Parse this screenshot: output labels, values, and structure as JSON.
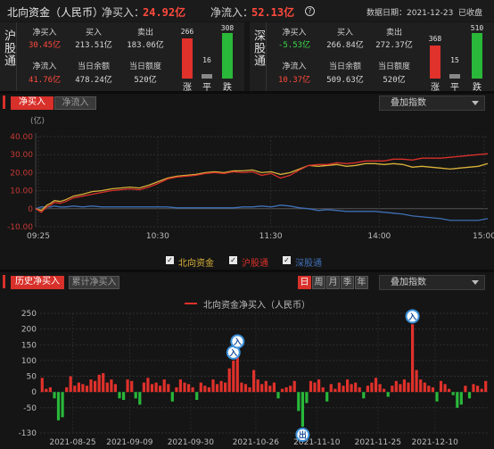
{
  "header": {
    "title": "北向资金（人民币）",
    "net_buy_label": "净买入：",
    "net_buy_value": "24.92亿",
    "net_inflow_label": "净流入：",
    "net_inflow_value": "52.13亿",
    "help_icon": "?",
    "date_label": "数据日期：2021-12-23",
    "status": "已收盘"
  },
  "shanghai": {
    "tag": "沪股通",
    "net_buy_label": "净买入",
    "net_buy_value": "30.45亿",
    "buy_label": "买入",
    "buy_value": "213.51亿",
    "sell_label": "卖出",
    "sell_value": "183.06亿",
    "net_inflow_label": "净流入",
    "net_inflow_value": "41.76亿",
    "balance_label": "当日余额",
    "balance_value": "478.24亿",
    "quota_label": "当日额度",
    "quota_value": "520亿",
    "up_count": "266",
    "flat_count": "16",
    "down_count": "308",
    "up_label": "涨",
    "flat_label": "平",
    "down_label": "跌"
  },
  "shenzhen": {
    "tag": "深股通",
    "net_buy_label": "净买入",
    "net_buy_value": "-5.53亿",
    "buy_label": "买入",
    "buy_value": "266.84亿",
    "sell_label": "卖出",
    "sell_value": "272.37亿",
    "net_inflow_label": "净流入",
    "net_inflow_value": "10.37亿",
    "balance_label": "当日余额",
    "balance_value": "509.63亿",
    "quota_label": "当日额度",
    "quota_value": "520亿",
    "up_count": "368",
    "flat_count": "15",
    "down_count": "510",
    "up_label": "涨",
    "flat_label": "平",
    "down_label": "跌"
  },
  "intraday_section": {
    "tab_net_buy": "净买入",
    "tab_net_inflow": "净流入",
    "overlay_label": "叠加指数",
    "unit_label": "(亿)"
  },
  "history_section": {
    "tab_history": "历史净买入",
    "tab_cumulative": "累计净买入",
    "periods": [
      "日",
      "周",
      "月",
      "季",
      "年"
    ],
    "overlay_label": "叠加指数"
  },
  "colors": {
    "accent": "#d8302a",
    "up": "#e0312b",
    "down": "#29b83a",
    "line_north": "#d9b23a",
    "line_sh": "#d8302a",
    "line_sz": "#3f6fb5"
  },
  "chart_data": [
    {
      "type": "line",
      "unit": "亿",
      "x_ticks": [
        "09:25",
        "10:30",
        "11:30",
        "14:00",
        "15:00"
      ],
      "y_ticks": [
        40.0,
        30.0,
        20.0,
        10.0,
        0,
        -10.0
      ],
      "ylim": [
        -10,
        40
      ],
      "x_points": [
        0,
        3,
        6,
        8,
        10,
        13,
        16,
        20,
        25,
        30,
        35,
        40,
        45,
        50,
        55,
        60,
        65,
        70,
        75,
        80,
        85,
        90,
        95,
        100,
        105,
        110,
        115,
        120,
        125,
        130,
        135,
        140,
        145,
        150,
        155,
        160,
        165,
        170,
        175,
        180,
        185,
        190,
        195,
        200,
        205,
        210,
        215,
        220,
        225,
        230,
        235,
        240
      ],
      "series": [
        {
          "name": "北向资金",
          "color": "#d9b23a",
          "values": [
            0,
            -1,
            2,
            3,
            4.5,
            4,
            5,
            7,
            8,
            9.5,
            10,
            11,
            11.5,
            12,
            11.5,
            13,
            15,
            17,
            18,
            18.5,
            19,
            20,
            20.5,
            20,
            21,
            21,
            21.5,
            20,
            20.5,
            19,
            20,
            22,
            24,
            23.5,
            24,
            24.5,
            23.5,
            24,
            25,
            25,
            24.5,
            25,
            24.5,
            23,
            23.5,
            23,
            22.5,
            22,
            22.5,
            23,
            23.5,
            25
          ]
        },
        {
          "name": "沪股通",
          "color": "#d8302a",
          "values": [
            0,
            -2,
            1,
            2,
            3.5,
            3,
            4,
            6,
            7,
            8,
            9,
            10,
            10.5,
            11,
            10.5,
            12,
            14,
            16.5,
            17.5,
            18,
            18.5,
            19.5,
            20,
            19.5,
            20.5,
            20,
            20.5,
            18.5,
            19.5,
            17,
            18.5,
            21.5,
            24,
            24.5,
            24.5,
            25.5,
            25,
            25.5,
            26.5,
            26.5,
            26.5,
            27.5,
            27.5,
            27,
            28,
            28,
            28,
            28.5,
            29,
            29.5,
            30,
            30.5
          ]
        },
        {
          "name": "深股通",
          "color": "#3f6fb5",
          "values": [
            0,
            1,
            1,
            1,
            1.5,
            1,
            1,
            1.5,
            1,
            1.5,
            1,
            1,
            1,
            1,
            1,
            1,
            1,
            1,
            0.5,
            0.5,
            0.5,
            0.5,
            0.5,
            0.5,
            0.5,
            1,
            1,
            1.5,
            1,
            2,
            1.5,
            0.5,
            0,
            -1,
            -0.5,
            -1,
            -1.5,
            -1.5,
            -1.5,
            -1.5,
            -2,
            -2.5,
            -3,
            -4,
            -4.5,
            -5,
            -5.5,
            -6.5,
            -6.5,
            -6.5,
            -6.5,
            -5.5
          ]
        }
      ]
    },
    {
      "type": "bar",
      "legend": "北向资金净买入（人民币）",
      "y_ticks": [
        250,
        200,
        150,
        100,
        50,
        0,
        -50,
        -130
      ],
      "ylim": [
        -130,
        250
      ],
      "x_ticks": [
        "2021-08-25",
        "2021-09-09",
        "2021-09-30",
        "2021-10-26",
        "2021-11-10",
        "2021-11-25",
        "2021-12-10"
      ],
      "markers": [
        {
          "label": "入",
          "bar_index": 47
        },
        {
          "label": "入",
          "bar_index": 48
        },
        {
          "label": "出",
          "bar_index": 64
        },
        {
          "label": "入",
          "bar_index": 91
        }
      ],
      "values": [
        45,
        10,
        15,
        -20,
        -90,
        -80,
        15,
        50,
        20,
        30,
        25,
        20,
        40,
        35,
        55,
        60,
        30,
        40,
        25,
        -20,
        -25,
        40,
        35,
        -20,
        -40,
        30,
        45,
        25,
        30,
        20,
        40,
        25,
        -30,
        15,
        40,
        30,
        25,
        15,
        -25,
        30,
        20,
        15,
        40,
        25,
        35,
        30,
        75,
        100,
        135,
        30,
        25,
        15,
        70,
        40,
        25,
        35,
        20,
        30,
        -20,
        10,
        15,
        20,
        35,
        -60,
        -110,
        -35,
        35,
        30,
        40,
        15,
        -30,
        25,
        10,
        30,
        20,
        40,
        25,
        30,
        15,
        -20,
        20,
        30,
        45,
        25,
        10,
        -15,
        20,
        35,
        25,
        40,
        30,
        215,
        70,
        40,
        30,
        20,
        15,
        -30,
        35,
        25,
        10,
        -10,
        -50,
        -40,
        20,
        -20,
        25,
        20,
        10,
        35
      ]
    }
  ]
}
